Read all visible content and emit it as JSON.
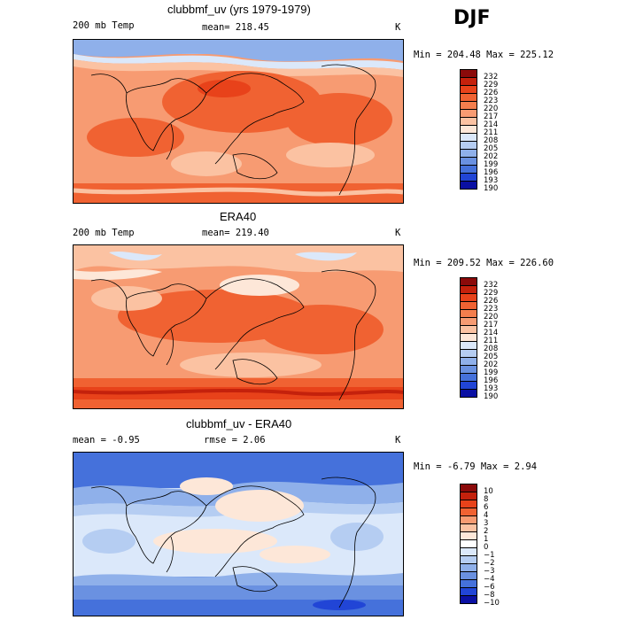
{
  "season": "DJF",
  "panels": [
    {
      "title": "clubbmf_uv (yrs 1979-1979)",
      "variable": "200 mb Temp",
      "stat1": "mean= 218.45",
      "stat2": "",
      "units": "K",
      "minmax": "Min = 204.48 Max = 225.12",
      "legend": [
        "232",
        "229",
        "226",
        "223",
        "220",
        "217",
        "214",
        "211",
        "208",
        "205",
        "202",
        "199",
        "196",
        "193",
        "190"
      ],
      "colors": [
        "#8b0a0a",
        "#c4210c",
        "#e8421a",
        "#f06232",
        "#f47e4d",
        "#f79b72",
        "#fbc2a2",
        "#fde7d8",
        "#dbe8fa",
        "#b5cdf2",
        "#8fb0ea",
        "#6a91e1",
        "#4571db",
        "#2145d6",
        "#0a10a3"
      ]
    },
    {
      "title": "ERA40",
      "variable": "200 mb Temp",
      "stat1": "mean= 219.40",
      "stat2": "",
      "units": "K",
      "minmax": "Min = 209.52 Max = 226.60",
      "legend": [
        "232",
        "229",
        "226",
        "223",
        "220",
        "217",
        "214",
        "211",
        "208",
        "205",
        "202",
        "199",
        "196",
        "193",
        "190"
      ],
      "colors": [
        "#8b0a0a",
        "#c4210c",
        "#e8421a",
        "#f06232",
        "#f47e4d",
        "#f79b72",
        "#fbc2a2",
        "#fde7d8",
        "#dbe8fa",
        "#b5cdf2",
        "#8fb0ea",
        "#6a91e1",
        "#4571db",
        "#2145d6",
        "#0a10a3"
      ]
    },
    {
      "title": "clubbmf_uv - ERA40",
      "variable": "",
      "stat1": "mean =  -0.95",
      "stat2": "rmse =   2.06",
      "units": "K",
      "minmax": "Min =  -6.79 Max =   2.94",
      "legend": [
        "10",
        "8",
        "6",
        "4",
        "3",
        "2",
        "1",
        "0",
        "−1",
        "−2",
        "−3",
        "−4",
        "−6",
        "−8",
        "−10"
      ],
      "colors": [
        "#8b0a0a",
        "#c4210c",
        "#e8421a",
        "#f06232",
        "#f79b72",
        "#fbc2a2",
        "#fde7d8",
        "#ffffff",
        "#dbe8fa",
        "#b5cdf2",
        "#8fb0ea",
        "#6a91e1",
        "#4571db",
        "#2145d6",
        "#0a10a3"
      ]
    }
  ]
}
